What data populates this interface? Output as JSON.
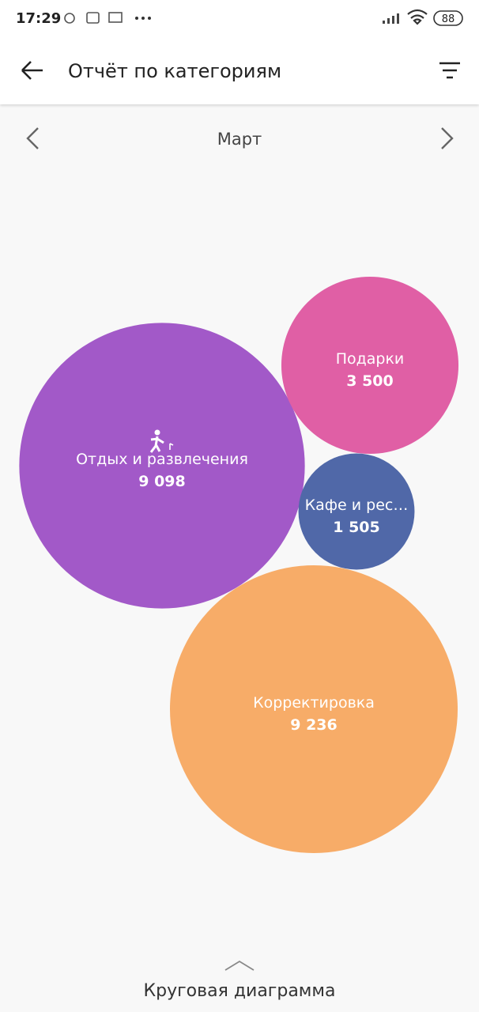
{
  "status_bar": {
    "time": "17:29",
    "battery": "88"
  },
  "header": {
    "title": "Отчёт по категориям"
  },
  "period": {
    "month": "Март"
  },
  "chart_data": {
    "type": "bubble",
    "categories": [
      "Отдых и развлечения",
      "Подарки",
      "Кафе и рес…",
      "Корректировка"
    ],
    "values": [
      9098,
      3500,
      1505,
      9236
    ],
    "value_labels": [
      "9 098",
      "3 500",
      "1 505",
      "9 236"
    ],
    "colors": [
      "#a259c8",
      "#e05fa5",
      "#5068a8",
      "#f7ac68"
    ]
  },
  "footer": {
    "label": "Круговая диаграмма"
  }
}
